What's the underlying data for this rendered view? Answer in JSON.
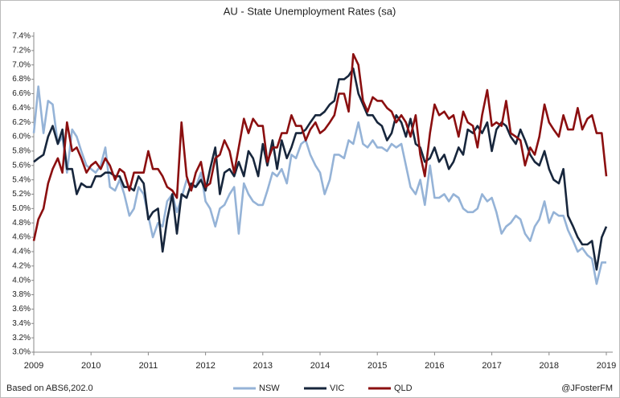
{
  "chart_data": {
    "type": "line",
    "title": "AU - State Unemployment Rates (sa)",
    "x": [
      2009,
      2009.08,
      2009.17,
      2009.25,
      2009.33,
      2009.42,
      2009.5,
      2009.58,
      2009.67,
      2009.75,
      2009.83,
      2009.92,
      2010,
      2010.08,
      2010.17,
      2010.25,
      2010.33,
      2010.42,
      2010.5,
      2010.58,
      2010.67,
      2010.75,
      2010.83,
      2010.92,
      2011,
      2011.08,
      2011.17,
      2011.25,
      2011.33,
      2011.42,
      2011.5,
      2011.58,
      2011.67,
      2011.75,
      2011.83,
      2011.92,
      2012,
      2012.08,
      2012.17,
      2012.25,
      2012.33,
      2012.42,
      2012.5,
      2012.58,
      2012.67,
      2012.75,
      2012.83,
      2012.92,
      2013,
      2013.08,
      2013.17,
      2013.25,
      2013.33,
      2013.42,
      2013.5,
      2013.58,
      2013.67,
      2013.75,
      2013.83,
      2013.92,
      2014,
      2014.08,
      2014.17,
      2014.25,
      2014.33,
      2014.42,
      2014.5,
      2014.58,
      2014.67,
      2014.75,
      2014.83,
      2014.92,
      2015,
      2015.08,
      2015.17,
      2015.25,
      2015.33,
      2015.42,
      2015.5,
      2015.58,
      2015.67,
      2015.75,
      2015.83,
      2015.92,
      2016,
      2016.08,
      2016.17,
      2016.25,
      2016.33,
      2016.42,
      2016.5,
      2016.58,
      2016.67,
      2016.75,
      2016.83,
      2016.92,
      2017,
      2017.08,
      2017.17,
      2017.25,
      2017.33,
      2017.42,
      2017.5,
      2017.58,
      2017.67,
      2017.75,
      2017.83,
      2017.92,
      2018,
      2018.08,
      2018.17,
      2018.25,
      2018.33,
      2018.42,
      2018.5,
      2018.58,
      2018.67,
      2018.75,
      2018.83,
      2018.92,
      2019
    ],
    "series": [
      {
        "name": "NSW",
        "color": "#95b3d7",
        "values": [
          6.05,
          6.7,
          6.05,
          6.5,
          6.45,
          5.9,
          6.0,
          5.5,
          6.1,
          6.0,
          5.8,
          5.6,
          5.55,
          5.5,
          5.6,
          5.85,
          5.3,
          5.25,
          5.4,
          5.2,
          4.9,
          5.0,
          5.3,
          5.2,
          4.9,
          4.6,
          4.8,
          4.75,
          5.1,
          5.2,
          4.95,
          5.15,
          5.4,
          5.3,
          5.3,
          5.5,
          5.1,
          5.0,
          4.75,
          5.0,
          5.05,
          5.2,
          5.3,
          4.65,
          5.35,
          5.2,
          5.1,
          5.05,
          5.05,
          5.25,
          5.5,
          5.45,
          5.55,
          5.35,
          5.75,
          5.7,
          5.9,
          5.95,
          5.75,
          5.6,
          5.5,
          5.2,
          5.4,
          5.75,
          5.75,
          5.7,
          5.95,
          5.9,
          6.2,
          5.9,
          5.85,
          5.95,
          5.85,
          5.85,
          5.8,
          5.9,
          5.85,
          5.9,
          5.6,
          5.3,
          5.2,
          5.4,
          5.05,
          5.6,
          5.15,
          5.15,
          5.2,
          5.1,
          5.2,
          5.15,
          5.0,
          4.95,
          4.95,
          5.0,
          5.2,
          5.1,
          5.15,
          4.95,
          4.65,
          4.75,
          4.8,
          4.9,
          4.85,
          4.65,
          4.55,
          4.75,
          4.85,
          5.1,
          4.8,
          4.95,
          4.9,
          4.9,
          4.7,
          4.55,
          4.4,
          4.45,
          4.35,
          4.3,
          3.95,
          4.25,
          4.25
        ]
      },
      {
        "name": "VIC",
        "color": "#17263c",
        "values": [
          5.65,
          5.7,
          5.75,
          6.0,
          6.15,
          5.9,
          6.1,
          5.55,
          5.55,
          5.2,
          5.35,
          5.3,
          5.3,
          5.45,
          5.45,
          5.5,
          5.5,
          5.45,
          5.45,
          5.3,
          5.3,
          5.25,
          5.45,
          5.35,
          4.85,
          4.95,
          5.0,
          4.4,
          4.85,
          5.2,
          4.65,
          5.2,
          5.15,
          5.35,
          5.3,
          5.4,
          5.25,
          5.55,
          5.85,
          5.2,
          5.5,
          5.55,
          5.45,
          5.65,
          5.45,
          5.8,
          5.7,
          5.45,
          5.9,
          5.6,
          5.95,
          5.55,
          5.95,
          5.7,
          5.85,
          6.05,
          6.05,
          6.1,
          6.2,
          6.3,
          6.3,
          6.35,
          6.45,
          6.5,
          6.8,
          6.8,
          6.85,
          6.95,
          6.6,
          6.45,
          6.3,
          6.3,
          6.2,
          6.15,
          5.95,
          6.05,
          6.3,
          6.2,
          6.0,
          6.25,
          5.9,
          5.85,
          5.65,
          5.7,
          5.85,
          5.65,
          5.75,
          5.55,
          5.65,
          5.85,
          5.75,
          6.1,
          6.05,
          6.15,
          6.05,
          6.2,
          5.8,
          6.1,
          6.2,
          6.15,
          6.0,
          5.9,
          6.1,
          5.95,
          5.75,
          5.65,
          5.6,
          5.8,
          5.55,
          5.4,
          5.35,
          5.55,
          4.9,
          4.75,
          4.6,
          4.5,
          4.5,
          4.55,
          4.15,
          4.6,
          4.75
        ]
      },
      {
        "name": "QLD",
        "color": "#8b0f10",
        "values": [
          4.55,
          4.85,
          5.0,
          5.35,
          5.55,
          5.7,
          5.5,
          6.2,
          5.8,
          5.85,
          5.7,
          5.5,
          5.6,
          5.65,
          5.55,
          5.7,
          5.6,
          5.4,
          5.55,
          5.5,
          5.25,
          5.5,
          5.5,
          5.5,
          5.8,
          5.55,
          5.55,
          5.45,
          5.3,
          5.25,
          5.15,
          6.2,
          5.45,
          5.25,
          5.5,
          5.65,
          5.3,
          5.35,
          5.7,
          5.75,
          5.95,
          5.8,
          5.5,
          5.85,
          6.25,
          6.05,
          6.25,
          6.15,
          6.15,
          5.65,
          5.85,
          5.85,
          6.05,
          6.05,
          6.3,
          6.15,
          6.15,
          5.95,
          6.1,
          6.2,
          6.05,
          6.1,
          6.2,
          6.3,
          6.6,
          6.6,
          6.35,
          7.15,
          7.0,
          6.5,
          6.35,
          6.55,
          6.5,
          6.5,
          6.4,
          6.35,
          6.2,
          6.3,
          6.2,
          6.0,
          6.3,
          5.75,
          5.45,
          6.05,
          6.45,
          6.3,
          6.35,
          6.25,
          6.3,
          6.0,
          6.35,
          6.2,
          6.15,
          5.85,
          6.3,
          6.65,
          6.15,
          6.2,
          6.15,
          6.5,
          6.05,
          6.0,
          5.95,
          5.6,
          5.85,
          5.75,
          6.0,
          6.45,
          6.2,
          6.1,
          6.0,
          6.3,
          6.1,
          6.1,
          6.4,
          6.1,
          6.25,
          6.3,
          6.05,
          6.05,
          5.45
        ]
      }
    ],
    "xlim": [
      2009,
      2019
    ],
    "xticks": [
      2009,
      2010,
      2011,
      2012,
      2013,
      2014,
      2015,
      2016,
      2017,
      2018,
      2019
    ],
    "ylim": [
      3.0,
      7.4
    ],
    "yticks": [
      {
        "value": 3.0,
        "label": "3.0%"
      },
      {
        "value": 3.2,
        "label": "3.2%"
      },
      {
        "value": 3.4,
        "label": "3.4%"
      },
      {
        "value": 3.6,
        "label": "3.6%"
      },
      {
        "value": 3.8,
        "label": "3.8%"
      },
      {
        "value": 4.0,
        "label": "4.0%"
      },
      {
        "value": 4.2,
        "label": "4.2%"
      },
      {
        "value": 4.4,
        "label": "4.4%"
      },
      {
        "value": 4.6,
        "label": "4.6%"
      },
      {
        "value": 4.8,
        "label": "4.8%"
      },
      {
        "value": 5.0,
        "label": "5.0%"
      },
      {
        "value": 5.2,
        "label": "5.2%"
      },
      {
        "value": 5.4,
        "label": "5.4%"
      },
      {
        "value": 5.6,
        "label": "5.6%"
      },
      {
        "value": 5.8,
        "label": "5.8%"
      },
      {
        "value": 6.0,
        "label": "6.0%"
      },
      {
        "value": 6.2,
        "label": "6.2%"
      },
      {
        "value": 6.4,
        "label": "6.4%"
      },
      {
        "value": 6.6,
        "label": "6.6%"
      },
      {
        "value": 6.8,
        "label": "6.8%"
      },
      {
        "value": 7.0,
        "label": "7.0%"
      },
      {
        "value": 7.2,
        "label": "7.2%"
      },
      {
        "value": 7.4,
        "label": "7.4%"
      }
    ],
    "grid": false,
    "legend": "bottom",
    "source": "Based on ABS6,202.0",
    "credit": "@JFosterFM"
  }
}
